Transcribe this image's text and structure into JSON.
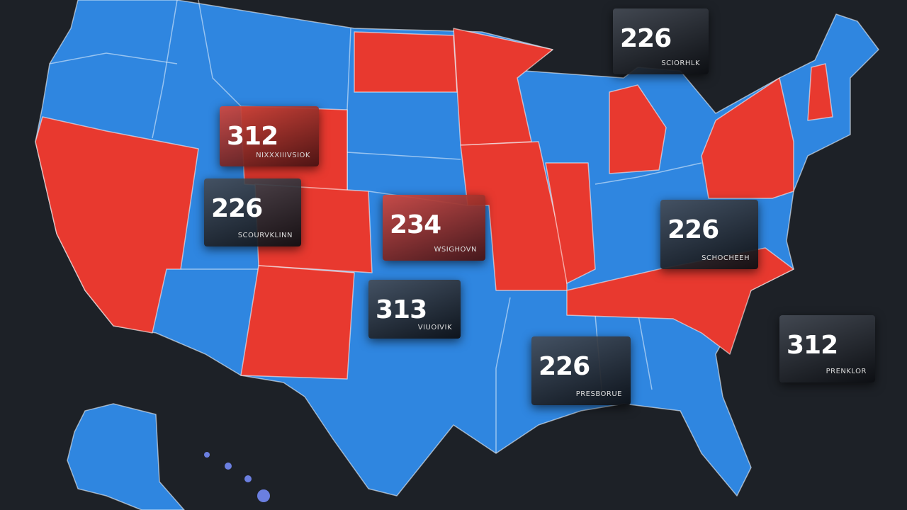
{
  "labels": [
    {
      "value": 226,
      "caption": "SCIORHLK"
    },
    {
      "value": 312,
      "caption": "NIXXXIIIVSIOK"
    },
    {
      "value": 226,
      "caption": "SCOURVKLINN"
    },
    {
      "value": 234,
      "caption": "WSIGHOVN"
    },
    {
      "value": 313,
      "caption": "VIUOIVIK"
    },
    {
      "value": 226,
      "caption": "PRESBORUE"
    },
    {
      "value": 226,
      "caption": "SCHOCHEEH"
    },
    {
      "value": 312,
      "caption": "PRENKLOR"
    }
  ]
}
